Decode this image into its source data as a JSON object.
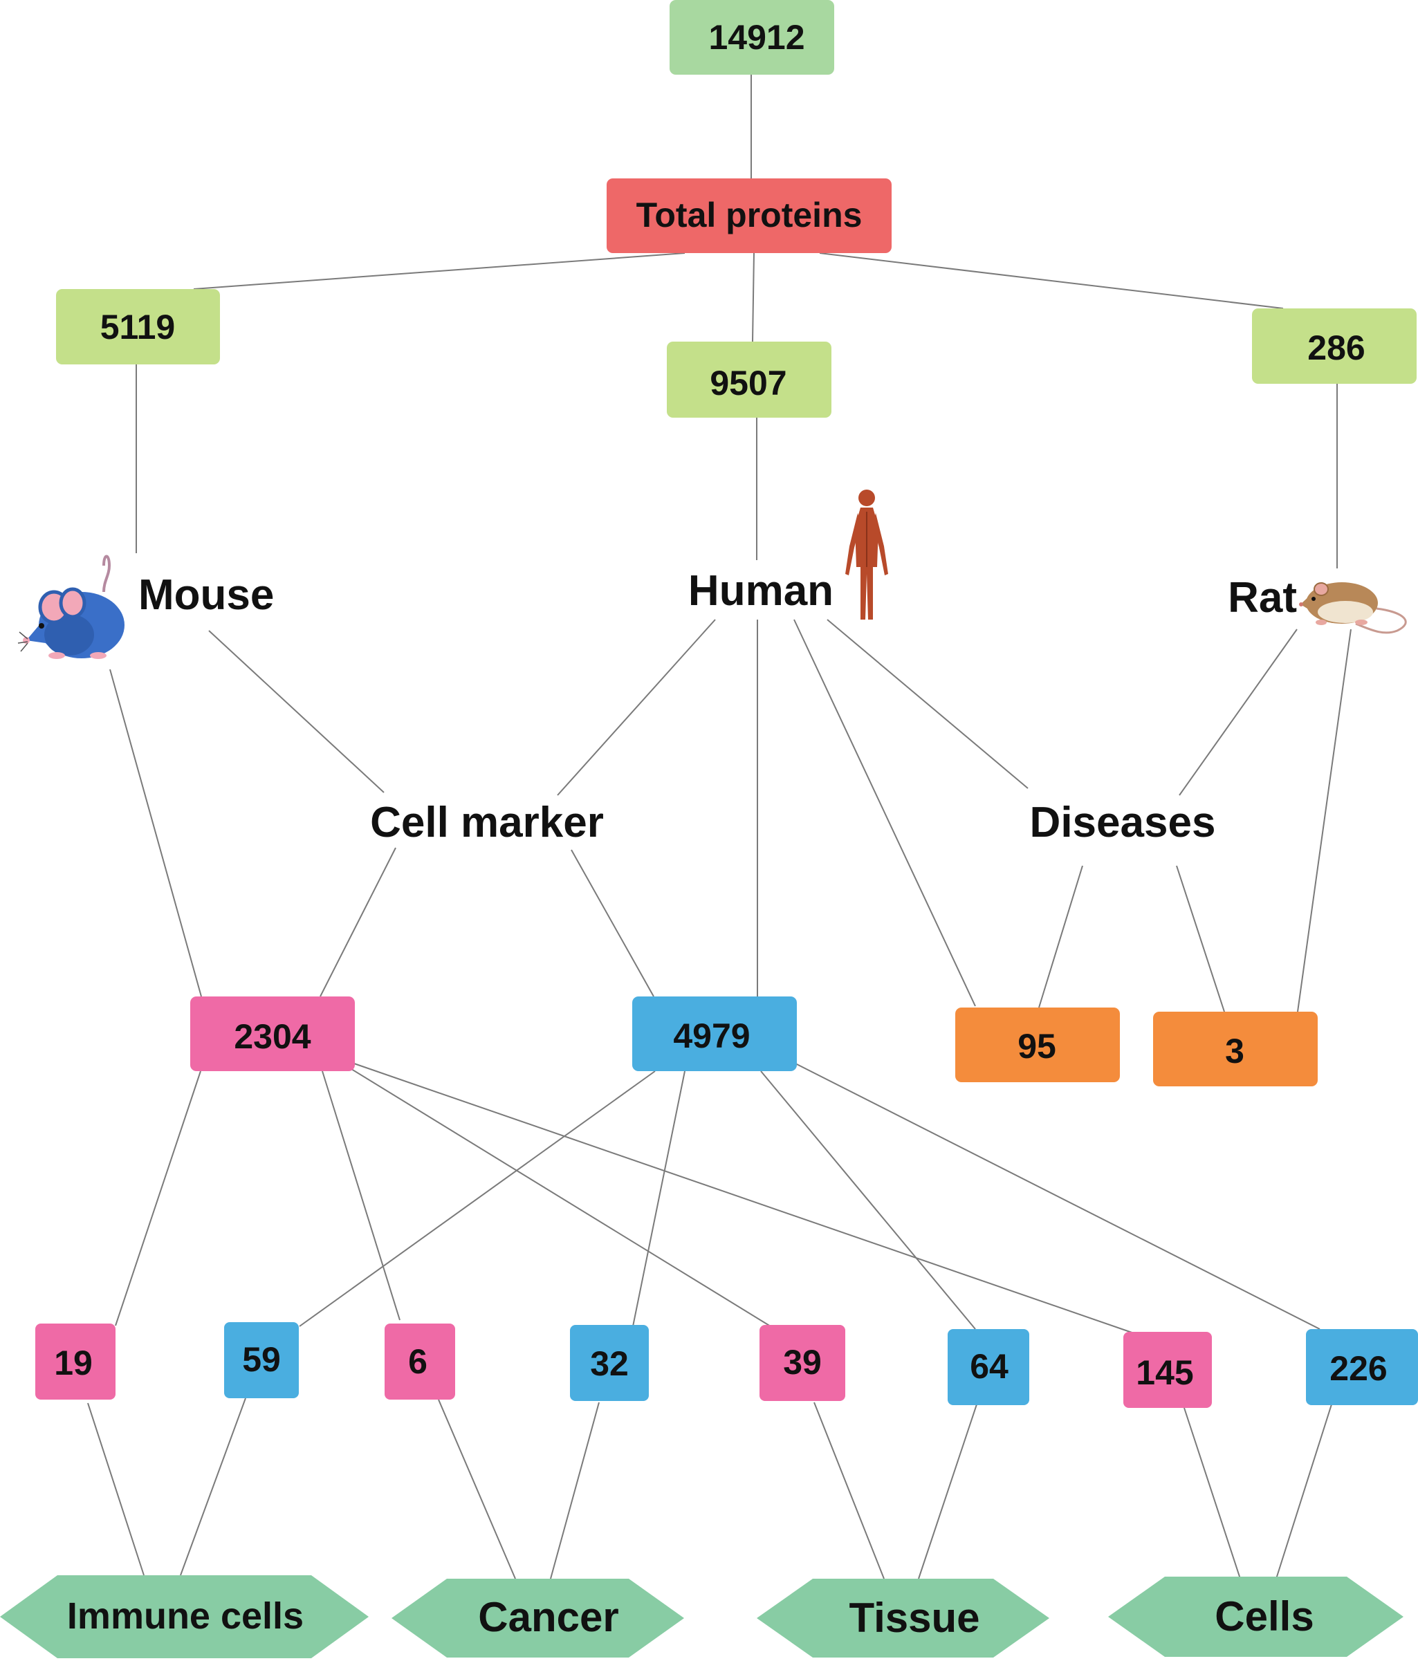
{
  "colors": {
    "root": "#a8d8a0",
    "header": "#ee6868",
    "species_count": "#c4e08a",
    "mouse_cell": "#ef6aa6",
    "human_cell": "#4aaee0",
    "disease": "#f48c3c",
    "category": "#88cca4",
    "edge": "#7a7a7a",
    "mouse_body": "#3a6fc8",
    "rat_body": "#b88858",
    "human_body": "#b84a2a"
  },
  "nodes": {
    "total": "14912",
    "total_proteins": "Total proteins",
    "mouse_count": "5119",
    "human_count": "9507",
    "rat_count": "286",
    "mouse": "Mouse",
    "human": "Human",
    "rat": "Rat",
    "cell_marker": "Cell marker",
    "diseases": "Diseases",
    "mouse_markers": "2304",
    "human_markers": "4979",
    "human_diseases": "95",
    "rat_diseases": "3",
    "leaves": [
      "19",
      "59",
      "6",
      "32",
      "39",
      "64",
      "145",
      "226"
    ],
    "categories": [
      "Immune cells",
      "Cancer",
      "Tissue",
      "Cells"
    ]
  },
  "icons": {
    "mouse": "mouse-icon",
    "human": "human-body-icon",
    "rat": "rat-icon"
  }
}
